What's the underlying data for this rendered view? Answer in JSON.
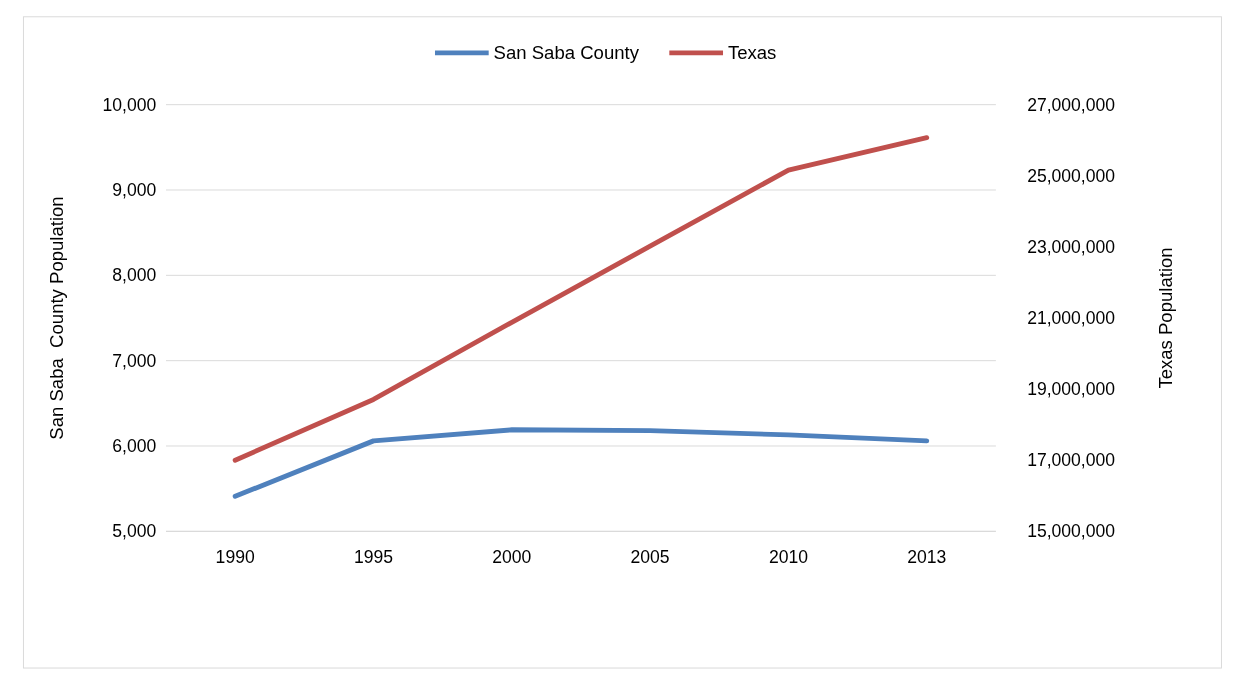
{
  "chart_data": {
    "type": "line",
    "ylabel": "San Saba  County Population",
    "y2label": "Texas Population",
    "categories": [
      "1990",
      "1995",
      "2000",
      "2005",
      "2010",
      "2013"
    ],
    "series": [
      {
        "name": "San Saba County",
        "color": "#4f81bd",
        "values": [
          5410,
          6060,
          6190,
          6180,
          6130,
          6060
        ]
      },
      {
        "name": "Texas",
        "color": "#c0504d",
        "axis": "y2",
        "values": [
          17000000,
          18710000,
          20880000,
          23020000,
          25160000,
          26070000
        ]
      }
    ],
    "ylim": [
      5000,
      10000
    ],
    "yticks": [
      {
        "value": 5000,
        "label": "5,000"
      },
      {
        "value": 6000,
        "label": "6,000"
      },
      {
        "value": 7000,
        "label": "7,000"
      },
      {
        "value": 8000,
        "label": "8,000"
      },
      {
        "value": 9000,
        "label": "9,000"
      },
      {
        "value": 10000,
        "label": "10,000"
      }
    ],
    "y2lim": [
      15000000,
      27000000
    ],
    "y2ticks": [
      {
        "value": 15000000,
        "label": "15,000,000"
      },
      {
        "value": 17000000,
        "label": "17,000,000"
      },
      {
        "value": 19000000,
        "label": "19,000,000"
      },
      {
        "value": 21000000,
        "label": "21,000,000"
      },
      {
        "value": 23000000,
        "label": "23,000,000"
      },
      {
        "value": 25000000,
        "label": "25,000,000"
      },
      {
        "value": 27000000,
        "label": "27,000,000"
      }
    ],
    "grid": "y",
    "legend": "top",
    "marker": "none",
    "line_style": "solid"
  }
}
